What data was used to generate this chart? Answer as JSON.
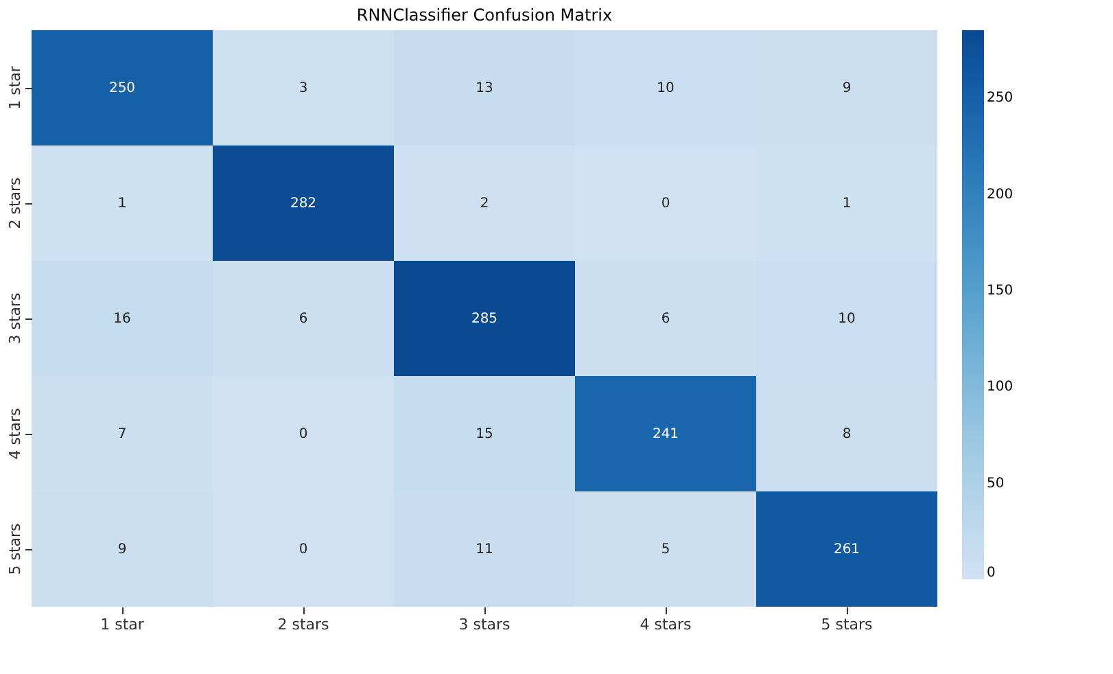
{
  "chart_data": {
    "type": "heatmap",
    "title": "RNNClassifier Confusion Matrix",
    "categories": [
      "1 star",
      "2 stars",
      "3 stars",
      "4 stars",
      "5 stars"
    ],
    "y_categories": [
      "1 star",
      "2 stars",
      "3 stars",
      "4 stars",
      "5 stars"
    ],
    "cells": [
      [
        250,
        3,
        13,
        10,
        9
      ],
      [
        1,
        282,
        2,
        0,
        1
      ],
      [
        16,
        6,
        285,
        6,
        10
      ],
      [
        7,
        0,
        15,
        241,
        8
      ],
      [
        9,
        0,
        11,
        5,
        261
      ]
    ],
    "clim": [
      0,
      285
    ],
    "cticks": [
      0,
      50,
      100,
      150,
      200,
      250
    ],
    "data_labels": true
  }
}
